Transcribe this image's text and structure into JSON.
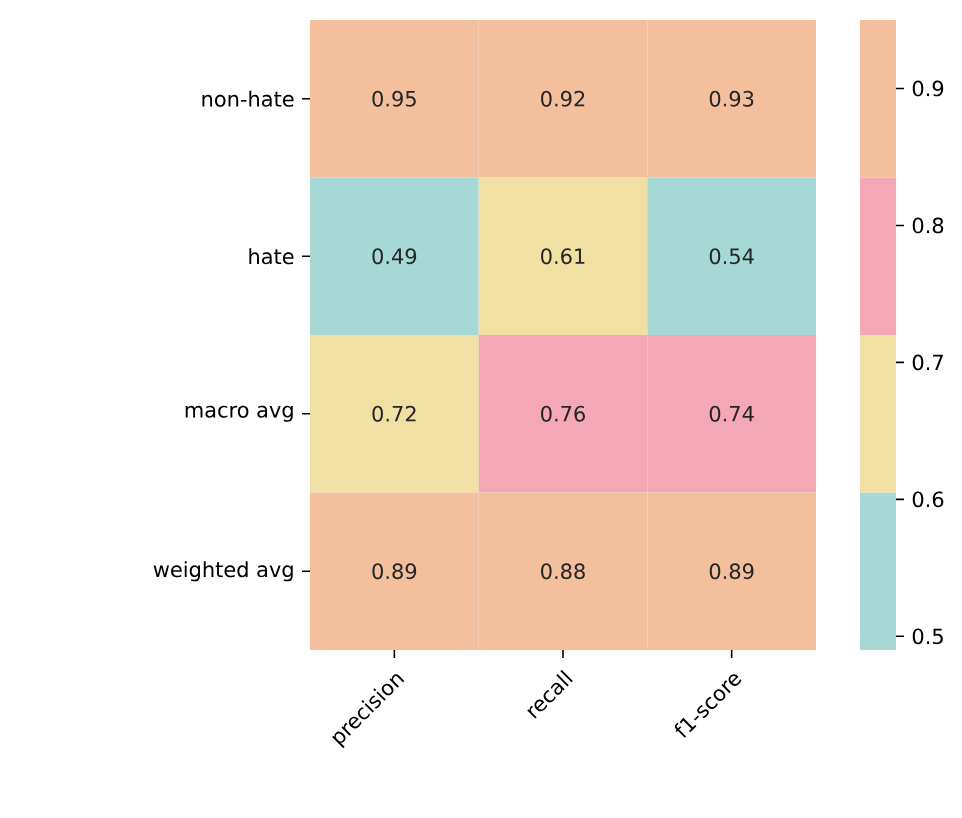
{
  "chart_data": {
    "type": "heatmap",
    "categories": [
      "precision",
      "recall",
      "f1-score"
    ],
    "y_categories": [
      "non-hate",
      "hate",
      "macro avg",
      "weighted avg"
    ],
    "cells": [
      [
        0.95,
        0.92,
        0.93
      ],
      [
        0.49,
        0.61,
        0.54
      ],
      [
        0.72,
        0.76,
        0.74
      ],
      [
        0.89,
        0.88,
        0.89
      ]
    ],
    "data_labels": true,
    "colors": [
      "#a6d9d6",
      "#f0e0a4",
      "#f4a7b7",
      "#f3bf9d"
    ],
    "clim": [
      0.49,
      0.95
    ],
    "cticks": [
      0.5,
      0.6,
      0.7,
      0.8,
      0.9
    ]
  }
}
